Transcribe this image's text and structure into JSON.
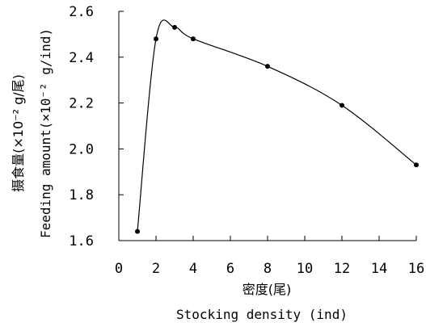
{
  "chart_data": {
    "type": "line",
    "xlabel_cn": "密度(尾)",
    "xlabel": "Stocking density (ind)",
    "ylabel_cn": "摄食量(×10⁻² g/尾)",
    "ylabel": "Feeding amount(×10⁻² g/ind)",
    "xlim": [
      0,
      16
    ],
    "ylim": [
      1.6,
      2.6
    ],
    "x_ticks": [
      0,
      2,
      4,
      6,
      8,
      10,
      12,
      14,
      16
    ],
    "y_ticks": [
      "1.6",
      "1.8",
      "2.0",
      "2.2",
      "2.4",
      "2.6"
    ],
    "grid": false,
    "smooth": true,
    "series": [
      {
        "x": [
          1,
          2,
          3,
          4,
          8,
          12,
          16
        ],
        "y": [
          1.64,
          2.48,
          2.53,
          2.48,
          2.36,
          2.19,
          1.93
        ]
      }
    ]
  }
}
